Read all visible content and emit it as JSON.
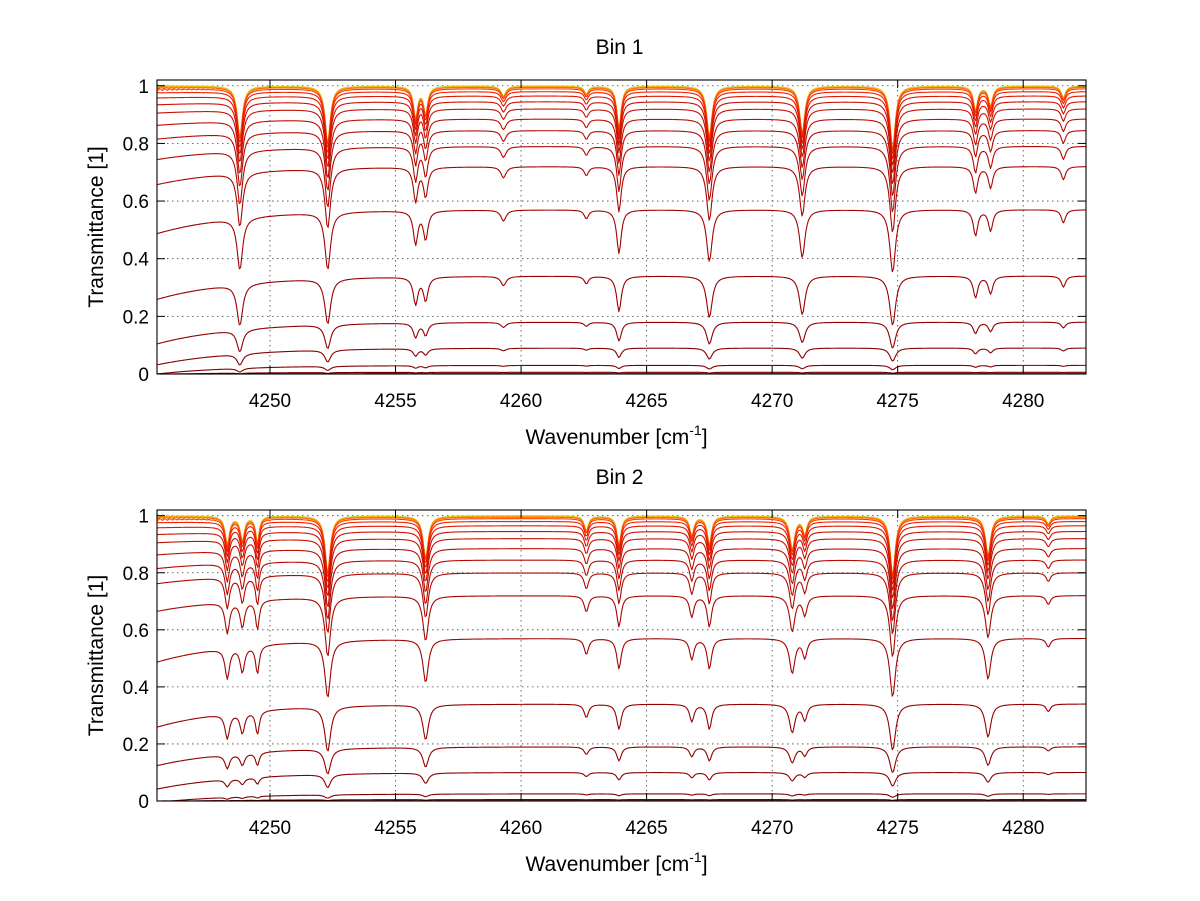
{
  "chart_data": [
    {
      "type": "line",
      "title": "Bin 1",
      "xlabel": "Wavenumber [cm",
      "xlabel_sup": "-1",
      "xlabel_end": "]",
      "ylabel": "Transmittance [1]",
      "xlim": [
        4245.5,
        4282.5
      ],
      "ylim": [
        0,
        1.02
      ],
      "xticks": [
        4250,
        4255,
        4260,
        4265,
        4270,
        4275,
        4280
      ],
      "xtick_labels": [
        "4250",
        "4255",
        "4260",
        "4265",
        "4270",
        "4275",
        "4280"
      ],
      "yticks": [
        0,
        0.2,
        0.4,
        0.6,
        0.8,
        1
      ],
      "ytick_labels": [
        "0",
        "0.2",
        "0.4",
        "0.6",
        "0.8",
        "1"
      ],
      "grid": true,
      "lines": [
        {
          "x": 4248.8,
          "depth": 0.55,
          "width": 0.12
        },
        {
          "x": 4252.3,
          "depth": 0.62,
          "width": 0.12
        },
        {
          "x": 4255.8,
          "depth": 0.33,
          "width": 0.1
        },
        {
          "x": 4256.2,
          "depth": 0.28,
          "width": 0.1
        },
        {
          "x": 4259.3,
          "depth": 0.1,
          "width": 0.12
        },
        {
          "x": 4262.6,
          "depth": 0.08,
          "width": 0.1
        },
        {
          "x": 4263.9,
          "depth": 0.45,
          "width": 0.1
        },
        {
          "x": 4267.5,
          "depth": 0.55,
          "width": 0.12
        },
        {
          "x": 4271.2,
          "depth": 0.5,
          "width": 0.12
        },
        {
          "x": 4274.8,
          "depth": 0.7,
          "width": 0.12
        },
        {
          "x": 4278.1,
          "depth": 0.25,
          "width": 0.1
        },
        {
          "x": 4278.7,
          "depth": 0.2,
          "width": 0.1
        },
        {
          "x": 4281.6,
          "depth": 0.12,
          "width": 0.1
        }
      ],
      "series": [
        {
          "level": 1.0,
          "slope": 0.0,
          "color": "#9ad0c0"
        },
        {
          "level": 0.999,
          "slope": 0.0,
          "color": "#e8d400"
        },
        {
          "level": 0.997,
          "slope": 0.001,
          "color": "#ffa500"
        },
        {
          "level": 0.995,
          "slope": 0.002,
          "color": "#ff6a00"
        },
        {
          "level": 0.99,
          "slope": 0.004,
          "color": "#ff3c00"
        },
        {
          "level": 0.98,
          "slope": 0.006,
          "color": "#f02000"
        },
        {
          "level": 0.965,
          "slope": 0.01,
          "color": "#e01600"
        },
        {
          "level": 0.945,
          "slope": 0.015,
          "color": "#d01000"
        },
        {
          "level": 0.92,
          "slope": 0.02,
          "color": "#c81000"
        },
        {
          "level": 0.885,
          "slope": 0.03,
          "color": "#c00c00"
        },
        {
          "level": 0.845,
          "slope": 0.04,
          "color": "#b80a00"
        },
        {
          "level": 0.79,
          "slope": 0.06,
          "color": "#b00800"
        },
        {
          "level": 0.72,
          "slope": 0.08,
          "color": "#a80600"
        },
        {
          "level": 0.57,
          "slope": 0.1,
          "color": "#a00400"
        },
        {
          "level": 0.34,
          "slope": 0.09,
          "color": "#980000"
        },
        {
          "level": 0.18,
          "slope": 0.08,
          "color": "#900000"
        },
        {
          "level": 0.09,
          "slope": 0.06,
          "color": "#880000"
        },
        {
          "level": 0.03,
          "slope": 0.03,
          "color": "#800000"
        },
        {
          "level": 0.006,
          "slope": 0.008,
          "color": "#700000"
        },
        {
          "level": 0.001,
          "slope": 0.001,
          "color": "#600000"
        }
      ]
    },
    {
      "type": "line",
      "title": "Bin 2",
      "xlabel": "Wavenumber [cm",
      "xlabel_sup": "-1",
      "xlabel_end": "]",
      "ylabel": "Transmittance [1]",
      "xlim": [
        4245.5,
        4282.5
      ],
      "ylim": [
        0,
        1.02
      ],
      "xticks": [
        4250,
        4255,
        4260,
        4265,
        4270,
        4275,
        4280
      ],
      "xtick_labels": [
        "4250",
        "4255",
        "4260",
        "4265",
        "4270",
        "4275",
        "4280"
      ],
      "yticks": [
        0,
        0.2,
        0.4,
        0.6,
        0.8,
        1
      ],
      "ytick_labels": [
        "0",
        "0.2",
        "0.4",
        "0.6",
        "0.8",
        "1"
      ],
      "grid": true,
      "lines": [
        {
          "x": 4248.3,
          "depth": 0.3,
          "width": 0.1
        },
        {
          "x": 4248.9,
          "depth": 0.25,
          "width": 0.1
        },
        {
          "x": 4249.5,
          "depth": 0.28,
          "width": 0.08
        },
        {
          "x": 4252.3,
          "depth": 0.62,
          "width": 0.12
        },
        {
          "x": 4256.2,
          "depth": 0.45,
          "width": 0.12
        },
        {
          "x": 4262.6,
          "depth": 0.15,
          "width": 0.1
        },
        {
          "x": 4263.9,
          "depth": 0.3,
          "width": 0.1
        },
        {
          "x": 4266.8,
          "depth": 0.2,
          "width": 0.1
        },
        {
          "x": 4267.5,
          "depth": 0.3,
          "width": 0.1
        },
        {
          "x": 4270.8,
          "depth": 0.35,
          "width": 0.12
        },
        {
          "x": 4271.3,
          "depth": 0.18,
          "width": 0.1
        },
        {
          "x": 4274.8,
          "depth": 0.65,
          "width": 0.12
        },
        {
          "x": 4278.6,
          "depth": 0.42,
          "width": 0.12
        },
        {
          "x": 4281.0,
          "depth": 0.08,
          "width": 0.1
        }
      ],
      "series": [
        {
          "level": 1.0,
          "slope": 0.0,
          "color": "#9ad0c0"
        },
        {
          "level": 0.999,
          "slope": 0.0,
          "color": "#e8d400"
        },
        {
          "level": 0.997,
          "slope": 0.001,
          "color": "#ffa500"
        },
        {
          "level": 0.995,
          "slope": 0.002,
          "color": "#ff6a00"
        },
        {
          "level": 0.99,
          "slope": 0.004,
          "color": "#ff3c00"
        },
        {
          "level": 0.98,
          "slope": 0.006,
          "color": "#f02000"
        },
        {
          "level": 0.965,
          "slope": 0.01,
          "color": "#e01600"
        },
        {
          "level": 0.945,
          "slope": 0.015,
          "color": "#d01000"
        },
        {
          "level": 0.92,
          "slope": 0.02,
          "color": "#c81000"
        },
        {
          "level": 0.885,
          "slope": 0.03,
          "color": "#c00c00"
        },
        {
          "level": 0.845,
          "slope": 0.04,
          "color": "#b80a00"
        },
        {
          "level": 0.8,
          "slope": 0.05,
          "color": "#b00800"
        },
        {
          "level": 0.72,
          "slope": 0.07,
          "color": "#a80600"
        },
        {
          "level": 0.57,
          "slope": 0.1,
          "color": "#a00400"
        },
        {
          "level": 0.34,
          "slope": 0.09,
          "color": "#980000"
        },
        {
          "level": 0.19,
          "slope": 0.07,
          "color": "#900000"
        },
        {
          "level": 0.1,
          "slope": 0.06,
          "color": "#880000"
        },
        {
          "level": 0.025,
          "slope": 0.03,
          "color": "#800000"
        },
        {
          "level": 0.005,
          "slope": 0.008,
          "color": "#700000"
        },
        {
          "level": 0.001,
          "slope": 0.001,
          "color": "#600000"
        }
      ]
    }
  ]
}
